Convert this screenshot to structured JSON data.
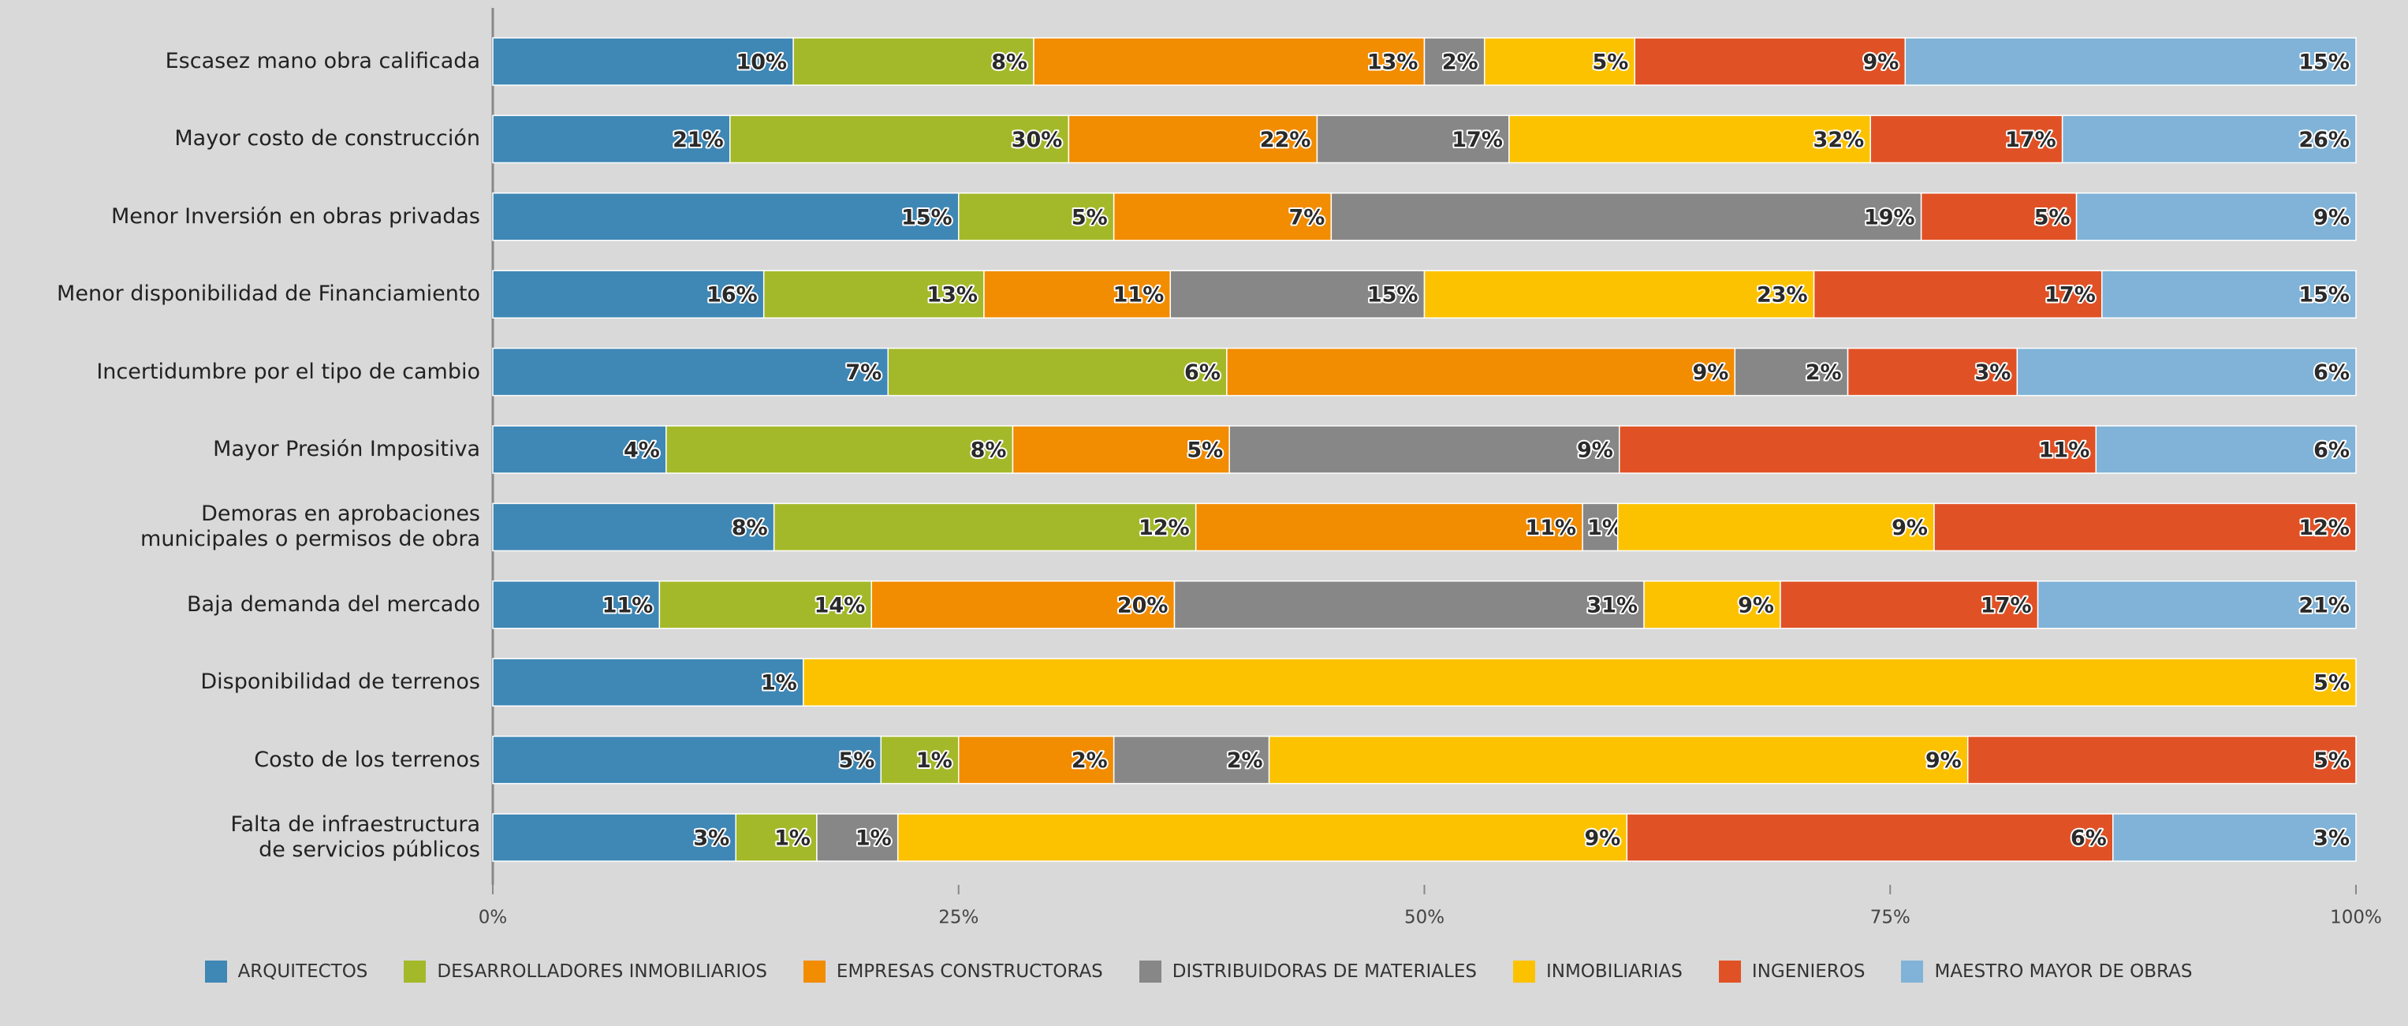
{
  "chart_data": {
    "type": "bar",
    "orientation": "horizontal",
    "stack": "percent",
    "categories": [
      "Escasez mano obra calificada",
      "Mayor costo de construcción",
      "Menor Inversión en obras privadas",
      "Menor disponibilidad de Financiamiento",
      "Incertidumbre por el tipo de cambio",
      "Mayor Presión Impositiva",
      "Demoras en aprobaciones municipales o permisos de obra",
      "Baja demanda del mercado",
      "Disponibilidad de terrenos",
      "Costo de los terrenos",
      "Falta de infraestructura de servicios públicos"
    ],
    "series": [
      {
        "name": "ARQUITECTOS",
        "color": "#3f87b5",
        "values": [
          10,
          21,
          15,
          16,
          7,
          4,
          8,
          11,
          1,
          5,
          3
        ],
        "value_labels": [
          "10%",
          "21%",
          "15%",
          "16%",
          "7%",
          "4%",
          "8%",
          "11%",
          "1%",
          "5%",
          "3%"
        ]
      },
      {
        "name": "DESARROLLADORES INMOBILIARIOS",
        "color": "#a4b92a",
        "values": [
          8,
          30,
          5,
          13,
          6,
          8,
          12,
          14,
          0,
          1,
          1
        ],
        "value_labels": [
          "8%",
          "30%",
          "5%",
          "13%",
          "6%",
          "8%",
          "12%",
          "14%",
          "0%",
          "1%",
          "1%"
        ]
      },
      {
        "name": "EMPRESAS CONSTRUCTORAS",
        "color": "#f28c00",
        "values": [
          13,
          22,
          7,
          11,
          9,
          5,
          11,
          20,
          null,
          2,
          null
        ],
        "value_labels": [
          "13%",
          "22%",
          "7%",
          "11%",
          "9%",
          "5%",
          "11%",
          "20%",
          null,
          "2%",
          null
        ]
      },
      {
        "name": "DISTRIBUIDORAS DE MATERIALES",
        "color": "#878787",
        "values": [
          2,
          17,
          19,
          15,
          2,
          9,
          1,
          31,
          null,
          2,
          1
        ],
        "value_labels": [
          "2%",
          "17%",
          "19%",
          "15%",
          "2%",
          "9%",
          "1%",
          "31%",
          null,
          "2%",
          "1%"
        ]
      },
      {
        "name": "INMOBILIARIAS",
        "color": "#fcc200",
        "values": [
          5,
          32,
          null,
          23,
          null,
          null,
          9,
          9,
          5,
          9,
          9
        ],
        "value_labels": [
          "5%",
          "32%",
          null,
          "23%",
          null,
          null,
          "9%",
          "9%",
          "5%",
          "9%",
          "9%"
        ]
      },
      {
        "name": "INGENIEROS",
        "color": "#e05226",
        "values": [
          9,
          17,
          5,
          17,
          3,
          11,
          12,
          17,
          null,
          5,
          6
        ],
        "value_labels": [
          "9%",
          "17%",
          "5%",
          "17%",
          "3%",
          "11%",
          "12%",
          "17%",
          null,
          "5%",
          "6%"
        ]
      },
      {
        "name": "MAESTRO MAYOR DE OBRAS",
        "color": "#80b3d7",
        "values": [
          15,
          26,
          9,
          15,
          6,
          6,
          null,
          21,
          null,
          null,
          3
        ],
        "value_labels": [
          "15%",
          "26%",
          "9%",
          "15%",
          "6%",
          "6%",
          null,
          "21%",
          null,
          null,
          "3%"
        ]
      }
    ],
    "xlim": [
      0,
      100
    ],
    "xticks": [
      {
        "value": 0,
        "label": "0%"
      },
      {
        "value": 25,
        "label": "25%"
      },
      {
        "value": 50,
        "label": "50%"
      },
      {
        "value": 75,
        "label": "75%"
      },
      {
        "value": 100,
        "label": "100%"
      }
    ],
    "legend": "bottom"
  }
}
